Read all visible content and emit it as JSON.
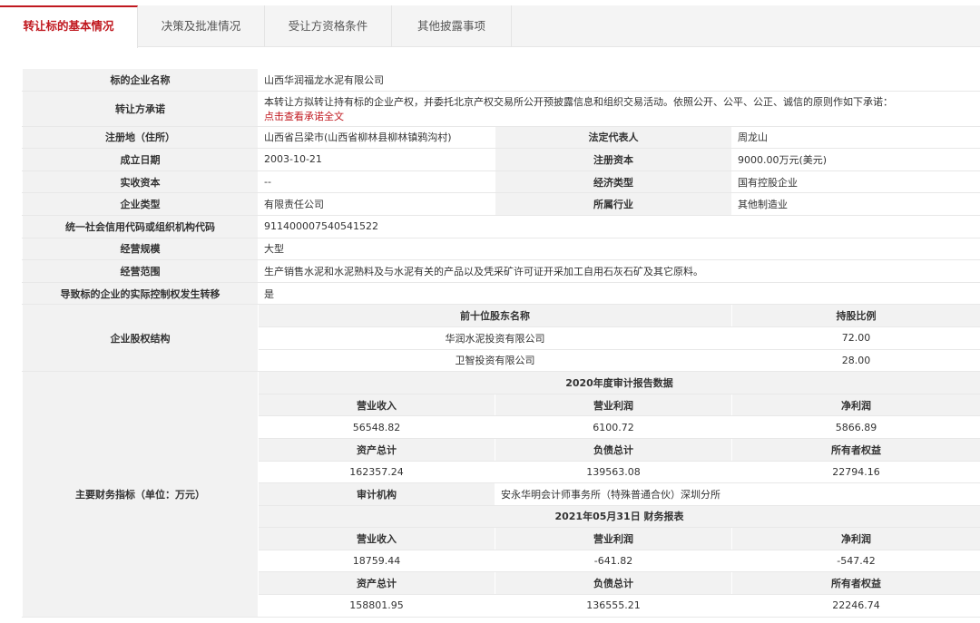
{
  "tabs": [
    "转让标的基本情况",
    "决策及批准情况",
    "受让方资格条件",
    "其他披露事项"
  ],
  "basic": {
    "company_name_label": "标的企业名称",
    "company_name": "山西华润福龙水泥有限公司",
    "promise_label": "转让方承诺",
    "promise_text": "本转让方拟转让持有标的企业产权，并委托北京产权交易所公开预披露信息和组织交易活动。依照公开、公平、公正、诚信的原则作如下承诺：",
    "promise_link": "点击查看承诺全文",
    "address_label": "注册地（住所）",
    "address": "山西省吕梁市(山西省柳林县柳林镇鸦沟村)",
    "legal_rep_label": "法定代表人",
    "legal_rep": "周龙山",
    "founded_label": "成立日期",
    "founded": "2003-10-21",
    "reg_capital_label": "注册资本",
    "reg_capital": "9000.00万元(美元)",
    "paid_capital_label": "实收资本",
    "paid_capital": "--",
    "econ_type_label": "经济类型",
    "econ_type": "国有控股企业",
    "ent_type_label": "企业类型",
    "ent_type": "有限责任公司",
    "industry_label": "所属行业",
    "industry": "其他制造业",
    "credit_code_label": "统一社会信用代码或组织机构代码",
    "credit_code": "911400007540541522",
    "scale_label": "经营规模",
    "scale": "大型",
    "scope_label": "经营范围",
    "scope": "生产销售水泥和水泥熟料及与水泥有关的产品以及凭采矿许可证开采加工自用石灰石矿及其它原料。",
    "control_label": "导致标的企业的实际控制权发生转移",
    "control": "是"
  },
  "equity": {
    "label": "企业股权结构",
    "col_name": "前十位股东名称",
    "col_ratio": "持股比例",
    "rows": [
      {
        "name": "华润水泥投资有限公司",
        "ratio": "72.00"
      },
      {
        "name": "卫智投资有限公司",
        "ratio": "28.00"
      }
    ]
  },
  "finance": {
    "label": "主要财务指标（单位：万元）",
    "y2020": {
      "title": "2020年度审计报告数据",
      "h1": [
        "营业收入",
        "营业利润",
        "净利润"
      ],
      "v1": [
        "56548.82",
        "6100.72",
        "5866.89"
      ],
      "h2": [
        "资产总计",
        "负债总计",
        "所有者权益"
      ],
      "v2": [
        "162357.24",
        "139563.08",
        "22794.16"
      ]
    },
    "auditor_label": "审计机构",
    "auditor": "安永华明会计师事务所（特殊普通合伙）深圳分所",
    "y2021": {
      "title": "2021年05月31日 财务报表",
      "h1": [
        "营业收入",
        "营业利润",
        "净利润"
      ],
      "v1": [
        "18759.44",
        "-641.82",
        "-547.42"
      ],
      "h2": [
        "资产总计",
        "负债总计",
        "所有者权益"
      ],
      "v2": [
        "158801.95",
        "136555.21",
        "22246.74"
      ]
    }
  },
  "colors": {
    "accent": "#c0181f",
    "label_bg": "#f2f2f2"
  }
}
